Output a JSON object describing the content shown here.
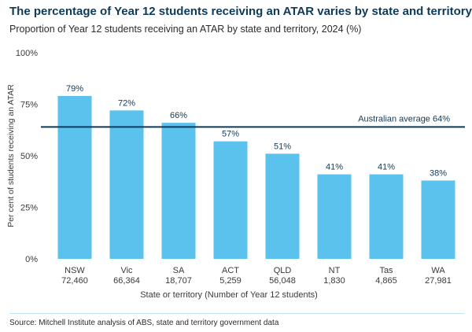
{
  "title": "The percentage of Year 12 students receiving an ATAR varies by state and territory",
  "subtitle": "Proportion of Year 12 students receiving an ATAR by state and territory, 2024 (%)",
  "source": "Source: Mitchell Institute analysis of ABS, state and territory government data",
  "chart_data": {
    "type": "bar",
    "categories": [
      "NSW",
      "Vic",
      "SA",
      "ACT",
      "QLD",
      "NT",
      "Tas",
      "WA"
    ],
    "sublabels": [
      "72,460",
      "66,364",
      "18,707",
      "5,259",
      "56,048",
      "1,830",
      "4,865",
      "27,981"
    ],
    "values": [
      79,
      72,
      66,
      57,
      51,
      41,
      41,
      38
    ],
    "value_labels": [
      "79%",
      "72%",
      "66%",
      "57%",
      "51%",
      "41%",
      "41%",
      "38%"
    ],
    "ylim": [
      0,
      100
    ],
    "yticks": [
      0,
      25,
      50,
      75,
      100
    ],
    "ytick_labels": [
      "0%",
      "25%",
      "50%",
      "75%",
      "100%"
    ],
    "xlabel": "State or territory (Number of Year 12 students)",
    "ylabel": "Per cent of students receiving an ATAR",
    "reference_line": {
      "value": 64,
      "label": "Australian average 64%"
    },
    "bar_color": "#5bc2ee",
    "line_color": "#0e3a5a",
    "grid": false
  }
}
